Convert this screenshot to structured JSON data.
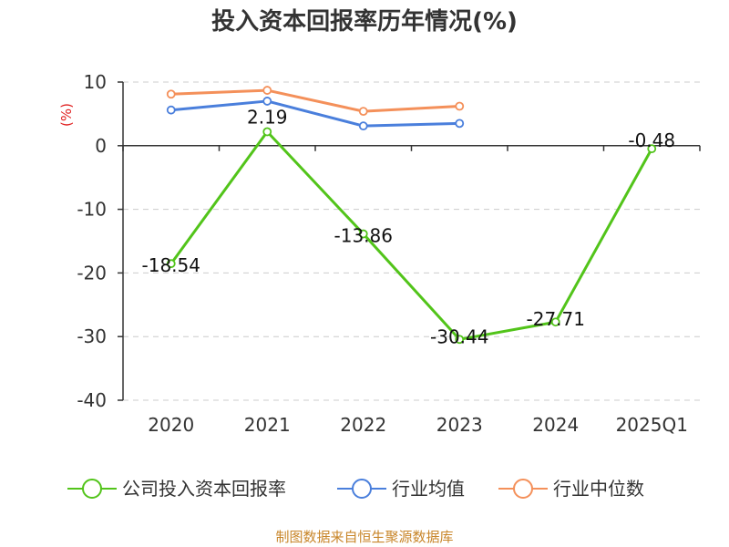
{
  "chart_data": {
    "type": "line",
    "title": "投入资本回报率历年情况(%)",
    "ylabel": "(%)",
    "xlabel": "",
    "ylim": [
      -40,
      10
    ],
    "yticks": [
      10,
      0,
      -10,
      -20,
      -30,
      -40
    ],
    "categories": [
      "2020",
      "2021",
      "2022",
      "2023",
      "2024",
      "2025Q1"
    ],
    "grid": true,
    "legend_position": "bottom",
    "series": [
      {
        "name": "公司投入资本回报率",
        "color": "#52c41a",
        "values": [
          -18.54,
          2.19,
          -13.86,
          -30.44,
          -27.71,
          -0.48
        ],
        "labels": [
          "-18.54",
          "2.19",
          "-13.86",
          "-30.44",
          "-27.71",
          "-0.48"
        ]
      },
      {
        "name": "行业均值",
        "color": "#4a7fdc",
        "values": [
          5.6,
          7.0,
          3.1,
          3.5,
          null,
          null
        ]
      },
      {
        "name": "行业中位数",
        "color": "#f4905a",
        "values": [
          8.1,
          8.7,
          5.4,
          6.2,
          null,
          null
        ]
      }
    ],
    "source": "制图数据来自恒生聚源数据库"
  }
}
